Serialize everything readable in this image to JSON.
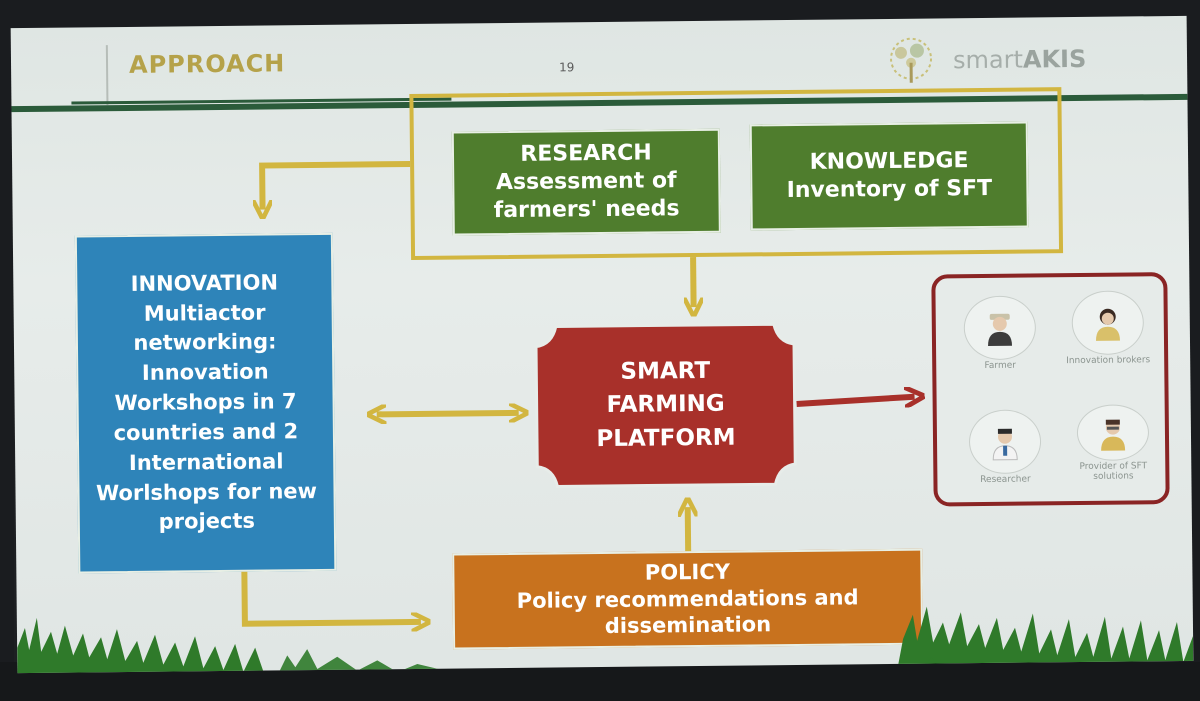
{
  "slide": {
    "title": "APPROACH",
    "page_number": "19",
    "logo_text_light": "smart",
    "logo_text_bold": "AKIS"
  },
  "nodes": {
    "research": {
      "lines": [
        "RESEARCH",
        "Assessment of",
        "farmers' needs"
      ]
    },
    "knowledge": {
      "lines": [
        "KNOWLEDGE",
        "Inventory of SFT"
      ]
    },
    "innovation": {
      "lines": [
        "INNOVATION",
        "Multiactor",
        "networking:",
        "Innovation",
        "Workshops in 7",
        "countries and 2",
        "International",
        "Worlshops for new",
        "projects"
      ]
    },
    "platform": {
      "lines": [
        "SMART",
        "FARMING",
        "PLATFORM"
      ]
    },
    "policy": {
      "lines": [
        "POLICY",
        "Policy recommendations and",
        "dissemination"
      ]
    }
  },
  "actors": [
    {
      "label": "Farmer",
      "icon": "farmer-icon"
    },
    {
      "label": "Innovation brokers",
      "icon": "broker-icon"
    },
    {
      "label": "Researcher",
      "icon": "researcher-icon"
    },
    {
      "label": "Provider of SFT solutions",
      "icon": "provider-icon"
    }
  ],
  "colors": {
    "title": "#b5a24a",
    "green_box": "#4f7d2d",
    "blue_box": "#2e84b9",
    "orange_box": "#c8721e",
    "platform_box": "#a8302a",
    "arrow_yellow": "#d2b640",
    "arrow_red": "#a8302a",
    "actor_frame": "#8a2424"
  }
}
